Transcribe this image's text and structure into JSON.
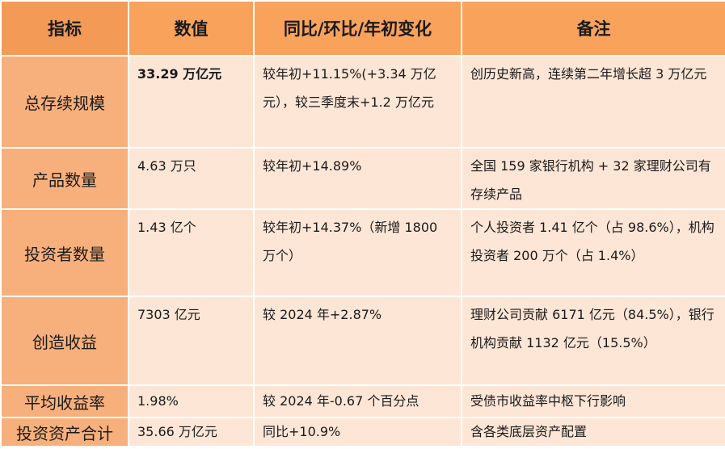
{
  "headers": [
    "指标",
    "数值",
    "同比/环比/年初变化",
    "备注"
  ],
  "rows": [
    {
      "indicator": "总存续规模",
      "value": "33.29 万亿元",
      "change": "较年初+11.15%(+3.34 万亿元），较三季度末+1.2 万亿元",
      "note": "创历史新高，连续第二年增长超 3 万亿元"
    },
    {
      "indicator": "产品数量",
      "value": "4.63 万只",
      "change": "较年初+14.89%",
      "note": "全国 159 家银行机构 + 32 家理财公司有存续产品"
    },
    {
      "indicator": "投资者数量",
      "value": "1.43 亿个",
      "change": "较年初+14.37%（新增 1800 万个）",
      "note": "个人投资者 1.41 亿个（占 98.6%），机构投资者 200 万个（占 1.4%）"
    },
    {
      "indicator": "创造收益",
      "value": "7303 亿元",
      "change": "较 2024 年+2.87%",
      "note": "理财公司贡献 6171 亿元（84.5%），银行机构贡献 1132 亿元（15.5%）"
    },
    {
      "indicator": "平均收益率",
      "value": "1.98%",
      "change": "较 2024 年-0.67 个百分点",
      "note": "受债市收益率中枢下行影响"
    },
    {
      "indicator": "投资资产合计",
      "value": "35.66 万亿元",
      "change": "同比+10.9%",
      "note": "含各类底层资产配置"
    }
  ]
}
